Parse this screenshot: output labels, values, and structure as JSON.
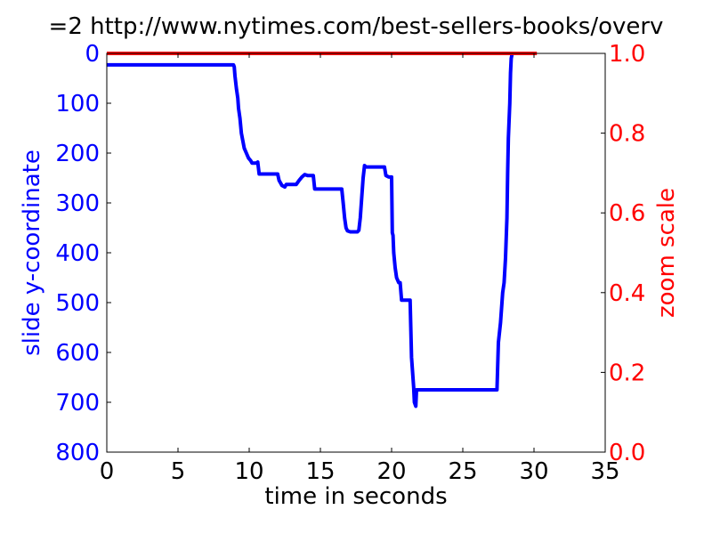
{
  "chart_data": {
    "type": "line",
    "title": "=2 http://www.nytimes.com/best-sellers-books/overv",
    "xlabel": "time in seconds",
    "ylabel_left": "slide y-coordinate",
    "ylabel_right": "zoom scale",
    "xlim": [
      0,
      35
    ],
    "ylim_left": [
      800,
      0
    ],
    "ylim_right": [
      0.0,
      1.0
    ],
    "left_axis_inverted": true,
    "grid": false,
    "x_ticks": [
      "0",
      "5",
      "10",
      "15",
      "20",
      "25",
      "30",
      "35"
    ],
    "y_ticks_left": [
      "0",
      "100",
      "200",
      "300",
      "400",
      "500",
      "600",
      "700",
      "800"
    ],
    "y_ticks_right": [
      "0.0",
      "0.2",
      "0.4",
      "0.6",
      "0.8",
      "1.0"
    ],
    "colors": {
      "left_series": "#0000ff",
      "right_series": "#ff0000",
      "left_axis_text": "#0000ff",
      "right_axis_text": "#ff0000"
    },
    "series": [
      {
        "axis": "left",
        "color": "#0000ff",
        "points": [
          [
            0.0,
            23
          ],
          [
            8.9,
            23
          ],
          [
            8.95,
            27
          ],
          [
            9.0,
            45
          ],
          [
            9.1,
            70
          ],
          [
            9.2,
            90
          ],
          [
            9.25,
            110
          ],
          [
            9.35,
            130
          ],
          [
            9.45,
            160
          ],
          [
            9.55,
            175
          ],
          [
            9.65,
            190
          ],
          [
            9.8,
            200
          ],
          [
            9.95,
            210
          ],
          [
            10.1,
            215
          ],
          [
            10.2,
            220
          ],
          [
            10.5,
            220
          ],
          [
            10.6,
            218
          ],
          [
            10.7,
            242
          ],
          [
            12.0,
            242
          ],
          [
            12.1,
            255
          ],
          [
            12.3,
            265
          ],
          [
            12.5,
            268
          ],
          [
            12.6,
            263
          ],
          [
            13.3,
            263
          ],
          [
            13.5,
            255
          ],
          [
            13.7,
            248
          ],
          [
            13.9,
            243
          ],
          [
            14.1,
            245
          ],
          [
            14.5,
            245
          ],
          [
            14.6,
            272
          ],
          [
            16.5,
            272
          ],
          [
            16.6,
            300
          ],
          [
            16.7,
            330
          ],
          [
            16.8,
            350
          ],
          [
            16.9,
            356
          ],
          [
            17.1,
            358
          ],
          [
            17.6,
            358
          ],
          [
            17.7,
            355
          ],
          [
            17.8,
            330
          ],
          [
            17.9,
            290
          ],
          [
            18.0,
            250
          ],
          [
            18.1,
            225
          ],
          [
            18.2,
            228
          ],
          [
            19.5,
            228
          ],
          [
            19.6,
            245
          ],
          [
            19.8,
            248
          ],
          [
            20.0,
            248
          ],
          [
            20.05,
            360
          ],
          [
            20.1,
            365
          ],
          [
            20.15,
            400
          ],
          [
            20.25,
            430
          ],
          [
            20.35,
            450
          ],
          [
            20.5,
            460
          ],
          [
            20.6,
            460
          ],
          [
            20.7,
            495
          ],
          [
            21.3,
            495
          ],
          [
            21.4,
            610
          ],
          [
            21.5,
            650
          ],
          [
            21.55,
            670
          ],
          [
            21.6,
            700
          ],
          [
            21.7,
            708
          ],
          [
            21.75,
            675
          ],
          [
            27.4,
            675
          ],
          [
            27.5,
            580
          ],
          [
            27.65,
            540
          ],
          [
            27.8,
            480
          ],
          [
            27.9,
            460
          ],
          [
            28.0,
            410
          ],
          [
            28.1,
            330
          ],
          [
            28.15,
            240
          ],
          [
            28.2,
            170
          ],
          [
            28.3,
            100
          ],
          [
            28.35,
            40
          ],
          [
            28.4,
            10
          ],
          [
            28.45,
            3
          ]
        ]
      },
      {
        "axis": "right",
        "color": "#ff0000",
        "points": [
          [
            0.0,
            1.0
          ],
          [
            30.2,
            1.0
          ]
        ]
      }
    ]
  }
}
